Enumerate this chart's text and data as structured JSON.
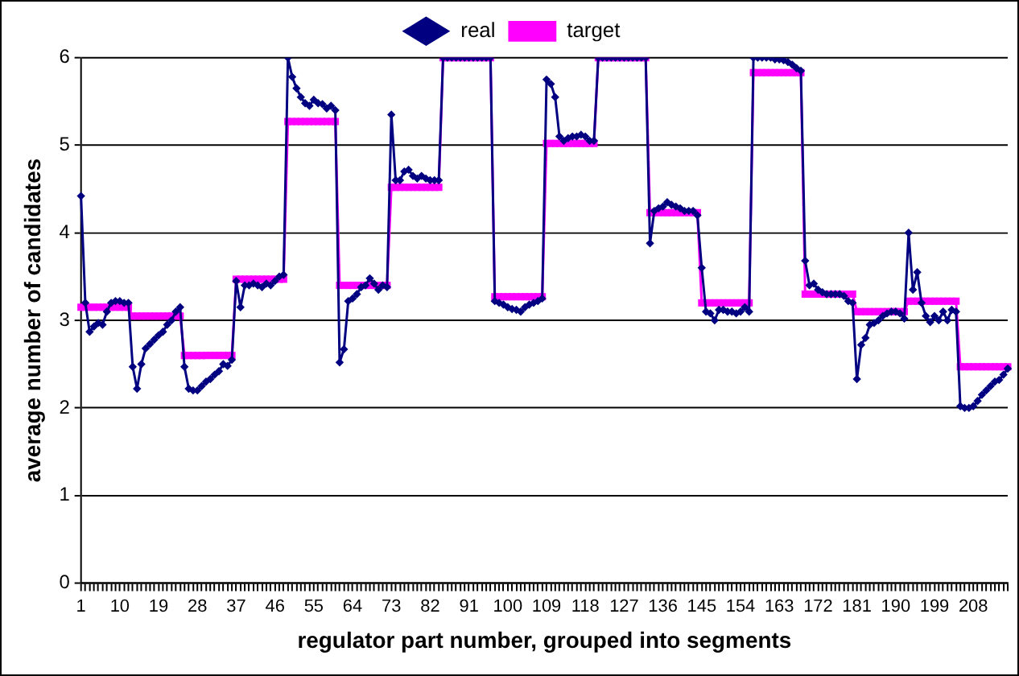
{
  "chart_data": {
    "type": "line",
    "xlabel": "regulator part number, grouped into segments",
    "ylabel": "average number of candidates",
    "categories": [
      "1",
      null,
      null,
      null,
      null,
      null,
      null,
      null,
      null,
      "10",
      null,
      null,
      null,
      null,
      null,
      null,
      null,
      null,
      "19",
      null,
      null,
      null,
      null,
      null,
      null,
      null,
      null,
      "28",
      null,
      null,
      null,
      null,
      null,
      null,
      null,
      null,
      "37",
      null,
      null,
      null,
      null,
      null,
      null,
      null,
      null,
      "46",
      null,
      null,
      null,
      null,
      null,
      null,
      null,
      null,
      "55",
      null,
      null,
      null,
      null,
      null,
      null,
      null,
      null,
      "64",
      null,
      null,
      null,
      null,
      null,
      null,
      null,
      null,
      "73",
      null,
      null,
      null,
      null,
      null,
      null,
      null,
      null,
      "82",
      null,
      null,
      null,
      null,
      null,
      null,
      null,
      null,
      "91",
      null,
      null,
      null,
      null,
      null,
      null,
      null,
      null,
      "100",
      null,
      null,
      null,
      null,
      null,
      null,
      null,
      null,
      "109",
      null,
      null,
      null,
      null,
      null,
      null,
      null,
      null,
      "118",
      null,
      null,
      null,
      null,
      null,
      null,
      null,
      null,
      "127",
      null,
      null,
      null,
      null,
      null,
      null,
      null,
      null,
      "136",
      null,
      null,
      null,
      null,
      null,
      null,
      null,
      null,
      "145",
      null,
      null,
      null,
      null,
      null,
      null,
      null,
      null,
      "154",
      null,
      null,
      null,
      null,
      null,
      null,
      null,
      null,
      "163",
      null,
      null,
      null,
      null,
      null,
      null,
      null,
      null,
      "172",
      null,
      null,
      null,
      null,
      null,
      null,
      null,
      null,
      "181",
      null,
      null,
      null,
      null,
      null,
      null,
      null,
      null,
      "190",
      null,
      null,
      null,
      null,
      null,
      null,
      null,
      null,
      "199",
      null,
      null,
      null,
      null,
      null,
      null,
      null,
      null,
      "208",
      null,
      null,
      null,
      null,
      null,
      null,
      null,
      null
    ],
    "series": [
      {
        "name": "real",
        "color": "#000080",
        "marker": "diamond",
        "values": [
          4.42,
          3.2,
          2.87,
          2.93,
          2.97,
          2.95,
          3.1,
          3.2,
          3.22,
          3.22,
          3.2,
          3.2,
          2.47,
          2.22,
          2.5,
          2.68,
          2.73,
          2.78,
          2.83,
          2.87,
          2.95,
          3.0,
          3.1,
          3.15,
          2.47,
          2.22,
          2.2,
          2.2,
          2.25,
          2.3,
          2.33,
          2.38,
          2.42,
          2.5,
          2.48,
          2.55,
          3.45,
          3.15,
          3.4,
          3.4,
          3.42,
          3.4,
          3.38,
          3.42,
          3.4,
          3.45,
          3.5,
          3.52,
          6.0,
          5.78,
          5.65,
          5.55,
          5.48,
          5.45,
          5.52,
          5.48,
          5.47,
          5.42,
          5.45,
          5.4,
          2.52,
          2.67,
          3.22,
          3.25,
          3.3,
          3.38,
          3.4,
          3.48,
          3.42,
          3.35,
          3.4,
          3.38,
          5.35,
          4.6,
          4.6,
          4.7,
          4.72,
          4.65,
          4.62,
          4.65,
          4.62,
          4.6,
          4.6,
          4.6,
          6.0,
          6.0,
          6.0,
          6.0,
          6.0,
          6.0,
          6.0,
          6.0,
          6.0,
          6.0,
          6.0,
          6.0,
          3.22,
          3.2,
          3.18,
          3.15,
          3.13,
          3.12,
          3.1,
          3.15,
          3.18,
          3.2,
          3.22,
          3.25,
          5.75,
          5.7,
          5.55,
          5.1,
          5.05,
          5.08,
          5.1,
          5.1,
          5.12,
          5.1,
          5.05,
          5.05,
          6.0,
          6.0,
          6.0,
          6.0,
          6.0,
          6.0,
          6.0,
          6.0,
          6.0,
          6.0,
          6.0,
          6.0,
          3.88,
          4.25,
          4.28,
          4.3,
          4.35,
          4.32,
          4.3,
          4.28,
          4.25,
          4.25,
          4.25,
          4.2,
          3.6,
          3.1,
          3.08,
          3.0,
          3.12,
          3.12,
          3.1,
          3.1,
          3.08,
          3.1,
          3.15,
          3.1,
          6.0,
          6.0,
          6.0,
          6.0,
          6.0,
          5.98,
          5.98,
          5.97,
          5.95,
          5.92,
          5.88,
          5.85,
          3.68,
          3.4,
          3.42,
          3.35,
          3.32,
          3.3,
          3.3,
          3.3,
          3.3,
          3.28,
          3.22,
          3.2,
          2.33,
          2.72,
          2.8,
          2.95,
          2.97,
          3.0,
          3.05,
          3.08,
          3.1,
          3.1,
          3.08,
          3.02,
          4.0,
          3.35,
          3.55,
          3.2,
          3.05,
          2.98,
          3.05,
          3.0,
          3.1,
          3.0,
          3.12,
          3.1,
          2.02,
          2.0,
          2.0,
          2.02,
          2.08,
          2.15,
          2.2,
          2.25,
          2.3,
          2.32,
          2.38,
          2.45
        ]
      },
      {
        "name": "target",
        "color": "#ff00ff",
        "marker": "square",
        "values": [
          3.15,
          3.15,
          3.15,
          3.15,
          3.15,
          3.15,
          3.15,
          3.15,
          3.15,
          3.15,
          3.15,
          3.15,
          3.05,
          3.05,
          3.05,
          3.05,
          3.05,
          3.05,
          3.05,
          3.05,
          3.05,
          3.05,
          3.05,
          3.05,
          2.6,
          2.6,
          2.6,
          2.6,
          2.6,
          2.6,
          2.6,
          2.6,
          2.6,
          2.6,
          2.6,
          2.6,
          3.47,
          3.47,
          3.47,
          3.47,
          3.47,
          3.47,
          3.47,
          3.47,
          3.47,
          3.47,
          3.47,
          3.47,
          5.27,
          5.27,
          5.27,
          5.27,
          5.27,
          5.27,
          5.27,
          5.27,
          5.27,
          5.27,
          5.27,
          5.27,
          3.4,
          3.4,
          3.4,
          3.4,
          3.4,
          3.4,
          3.4,
          3.4,
          3.4,
          3.4,
          3.4,
          3.4,
          4.52,
          4.52,
          4.52,
          4.52,
          4.52,
          4.52,
          4.52,
          4.52,
          4.52,
          4.52,
          4.52,
          4.52,
          6.0,
          6.0,
          6.0,
          6.0,
          6.0,
          6.0,
          6.0,
          6.0,
          6.0,
          6.0,
          6.0,
          6.0,
          3.27,
          3.27,
          3.27,
          3.27,
          3.27,
          3.27,
          3.27,
          3.27,
          3.27,
          3.27,
          3.27,
          3.27,
          5.02,
          5.02,
          5.02,
          5.02,
          5.02,
          5.02,
          5.02,
          5.02,
          5.02,
          5.02,
          5.02,
          5.02,
          6.0,
          6.0,
          6.0,
          6.0,
          6.0,
          6.0,
          6.0,
          6.0,
          6.0,
          6.0,
          6.0,
          6.0,
          4.23,
          4.23,
          4.23,
          4.23,
          4.23,
          4.23,
          4.23,
          4.23,
          4.23,
          4.23,
          4.23,
          4.23,
          3.2,
          3.2,
          3.2,
          3.2,
          3.2,
          3.2,
          3.2,
          3.2,
          3.2,
          3.2,
          3.2,
          3.2,
          5.83,
          5.83,
          5.83,
          5.83,
          5.83,
          5.83,
          5.83,
          5.83,
          5.83,
          5.83,
          5.83,
          5.83,
          3.3,
          3.3,
          3.3,
          3.3,
          3.3,
          3.3,
          3.3,
          3.3,
          3.3,
          3.3,
          3.3,
          3.3,
          3.1,
          3.1,
          3.1,
          3.1,
          3.1,
          3.1,
          3.1,
          3.1,
          3.1,
          3.1,
          3.1,
          3.1,
          3.22,
          3.22,
          3.22,
          3.22,
          3.22,
          3.22,
          3.22,
          3.22,
          3.22,
          3.22,
          3.22,
          3.22,
          2.47,
          2.47,
          2.47,
          2.47,
          2.47,
          2.47,
          2.47,
          2.47,
          2.47,
          2.47,
          2.47,
          2.47
        ]
      }
    ],
    "ylim": [
      0,
      6
    ],
    "yticks": [
      0,
      1,
      2,
      3,
      4,
      5,
      6
    ],
    "grid": "y",
    "legend": "top"
  }
}
